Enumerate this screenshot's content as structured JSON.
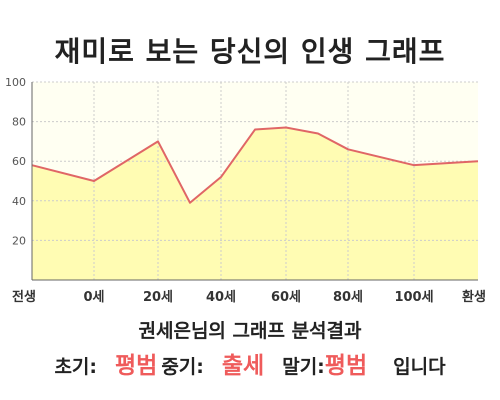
{
  "title": "재미로 보는 당신의 인생 그래프",
  "result": {
    "line1": "권세은님의 그래프 분석결과",
    "early_label": "초기:",
    "early_value": "평범",
    "mid_label": "중기:",
    "mid_value": "출세",
    "late_label": "말기:",
    "late_value": "평범",
    "ending": "입니다"
  },
  "colors": {
    "line": "#e06666",
    "fill": "#fffcb3",
    "plot_bg": "#fffff2",
    "grid": "#cccccc",
    "highlight": "#ef5b5b"
  },
  "chart_data": {
    "type": "area",
    "title": "재미로 보는 당신의 인생 그래프",
    "x_labels": [
      "전생",
      "0세",
      "20세",
      "40세",
      "60세",
      "80세",
      "100세",
      "환생"
    ],
    "y_ticks": [
      20,
      40,
      60,
      80,
      100
    ],
    "ylim": [
      0,
      100
    ],
    "grid": true,
    "series": [
      {
        "points": [
          {
            "x": "전생",
            "y": 58
          },
          {
            "x": "0세",
            "y": 50
          },
          {
            "x": "20세",
            "y": 70
          },
          {
            "x": "30세",
            "y": 39
          },
          {
            "x": "40세",
            "y": 52
          },
          {
            "x": "50세",
            "y": 76
          },
          {
            "x": "60세",
            "y": 77
          },
          {
            "x": "70세",
            "y": 74
          },
          {
            "x": "80세",
            "y": 66
          },
          {
            "x": "100세",
            "y": 58
          },
          {
            "x": "환생",
            "y": 60
          }
        ]
      }
    ]
  }
}
